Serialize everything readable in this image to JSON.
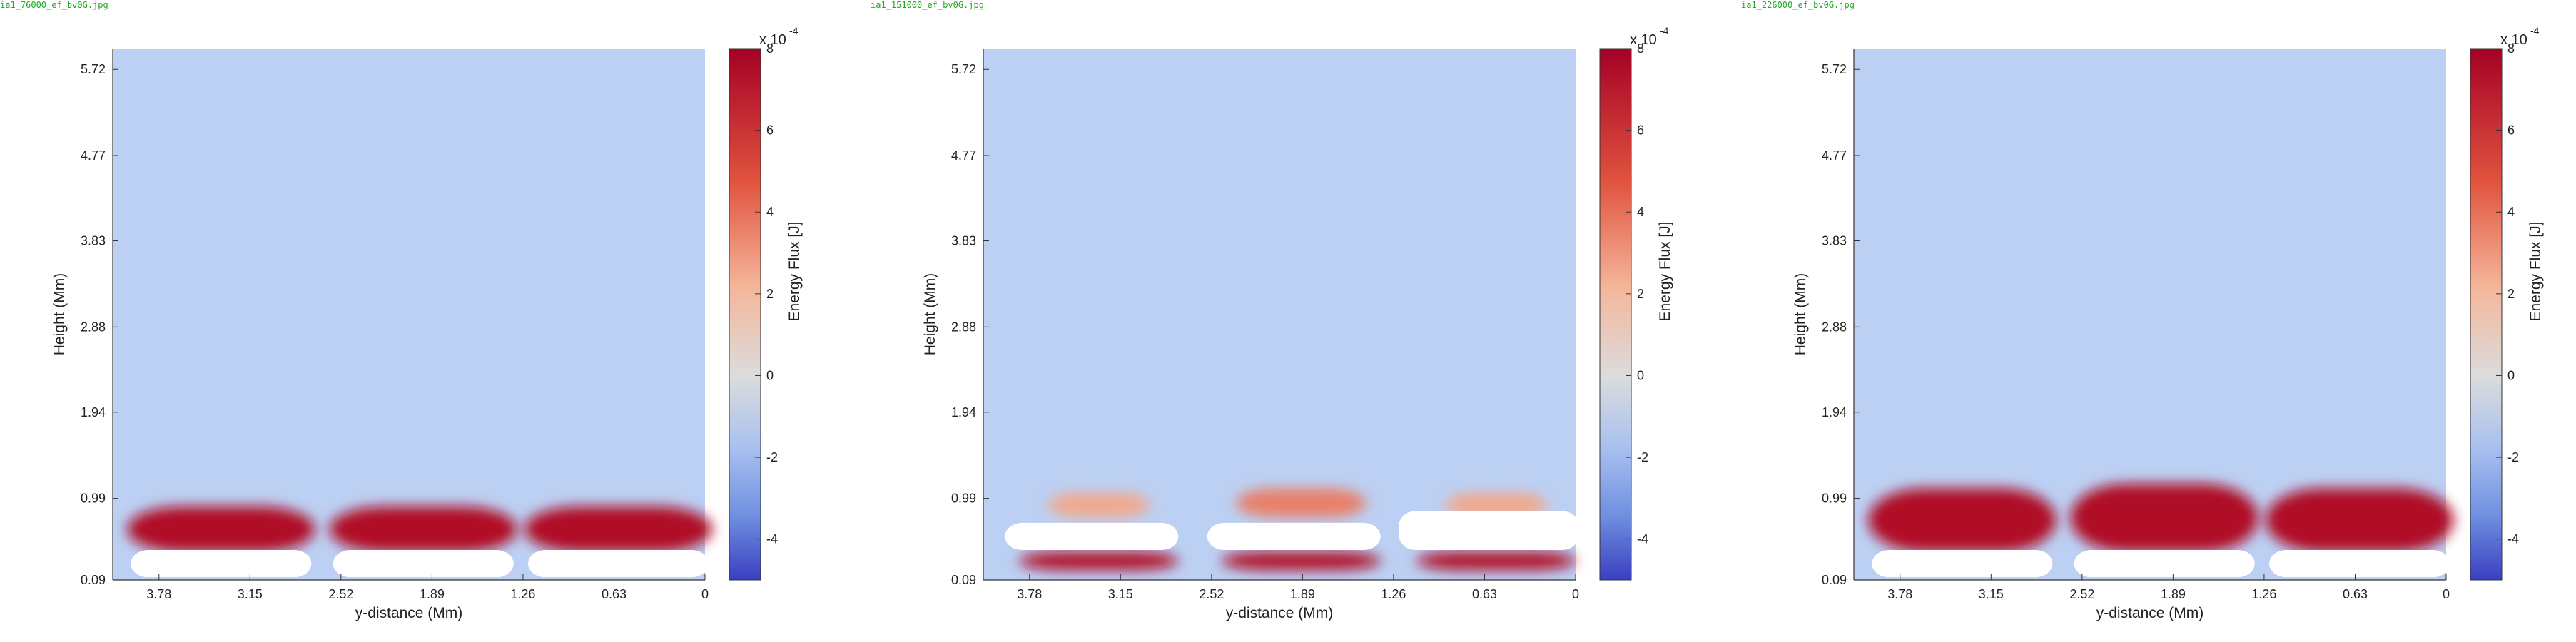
{
  "colors": {
    "background_field": "#bcd0f3",
    "hot": "#b00a28",
    "cold": "#3a4fc8",
    "label_green": "#22aa22"
  },
  "panels": [
    {
      "label": "ia1_76000_ef_bv0G.jpg",
      "chart_data": {
        "type": "heatmap",
        "xlabel": "y-distance (Mm)",
        "ylabel": "Height (Mm)",
        "x_ticks": [
          "3.78",
          "3.15",
          "2.52",
          "1.89",
          "1.26",
          "0.63",
          "0"
        ],
        "y_ticks": [
          "0.09",
          "0.99",
          "1.94",
          "2.88",
          "3.83",
          "4.77",
          "5.72"
        ],
        "x_range": [
          4.1,
          0
        ],
        "y_range": [
          0.09,
          5.95
        ],
        "colorbar": {
          "label": "Energy Flux [J]",
          "exponent_label": "x 10",
          "exponent": "-4",
          "ticks": [
            "8",
            "6",
            "4",
            "2",
            "0",
            "-2",
            "-4"
          ],
          "range": [
            -5,
            8
          ]
        },
        "features": [
          {
            "kind": "blob",
            "sign": "positive",
            "x_center": 3.35,
            "width": 1.3,
            "y_bottom": 0.4,
            "y_top": 0.9,
            "value": 8
          },
          {
            "kind": "blob",
            "sign": "positive",
            "x_center": 1.95,
            "width": 1.3,
            "y_bottom": 0.4,
            "y_top": 0.9,
            "value": 8
          },
          {
            "kind": "blob",
            "sign": "positive",
            "x_center": 0.6,
            "width": 1.3,
            "y_bottom": 0.4,
            "y_top": 0.9,
            "value": 8
          },
          {
            "kind": "mask",
            "x_center": 3.35,
            "width": 1.25,
            "y_bottom": 0.12,
            "y_top": 0.42
          },
          {
            "kind": "mask",
            "x_center": 1.95,
            "width": 1.25,
            "y_bottom": 0.12,
            "y_top": 0.42
          },
          {
            "kind": "mask",
            "x_center": 0.6,
            "width": 1.25,
            "y_bottom": 0.12,
            "y_top": 0.42
          }
        ]
      }
    },
    {
      "label": "ia1_151000_ef_bv0G.jpg",
      "chart_data": {
        "type": "heatmap",
        "xlabel": "y-distance (Mm)",
        "ylabel": "Height (Mm)",
        "x_ticks": [
          "3.78",
          "3.15",
          "2.52",
          "1.89",
          "1.26",
          "0.63",
          "0"
        ],
        "y_ticks": [
          "0.09",
          "0.99",
          "1.94",
          "2.88",
          "3.83",
          "4.77",
          "5.72"
        ],
        "x_range": [
          4.1,
          0
        ],
        "y_range": [
          0.09,
          5.95
        ],
        "colorbar": {
          "label": "Energy Flux [J]",
          "exponent_label": "x 10",
          "exponent": "-4",
          "ticks": [
            "8",
            "6",
            "4",
            "2",
            "0",
            "-2",
            "-4"
          ],
          "range": [
            -5,
            8
          ]
        },
        "features": [
          {
            "kind": "blob",
            "sign": "positive",
            "x_center": 3.3,
            "width": 0.7,
            "y_bottom": 0.78,
            "y_top": 1.05,
            "value": 4
          },
          {
            "kind": "blob",
            "sign": "positive",
            "x_center": 1.9,
            "width": 0.9,
            "y_bottom": 0.78,
            "y_top": 1.1,
            "value": 5
          },
          {
            "kind": "blob",
            "sign": "positive",
            "x_center": 0.55,
            "width": 0.7,
            "y_bottom": 0.78,
            "y_top": 1.05,
            "value": 4
          },
          {
            "kind": "blob",
            "sign": "positive",
            "x_center": 3.3,
            "width": 1.1,
            "y_bottom": 0.2,
            "y_top": 0.4,
            "value": 8
          },
          {
            "kind": "blob",
            "sign": "positive",
            "x_center": 1.9,
            "width": 1.1,
            "y_bottom": 0.2,
            "y_top": 0.4,
            "value": 8
          },
          {
            "kind": "blob",
            "sign": "positive",
            "x_center": 0.55,
            "width": 1.1,
            "y_bottom": 0.2,
            "y_top": 0.4,
            "value": 8
          },
          {
            "kind": "mask",
            "x_center": 3.35,
            "width": 1.2,
            "y_bottom": 0.42,
            "y_top": 0.72
          },
          {
            "kind": "mask",
            "x_center": 1.95,
            "width": 1.2,
            "y_bottom": 0.42,
            "y_top": 0.72
          },
          {
            "kind": "mask",
            "x_center": 0.6,
            "width": 1.25,
            "y_bottom": 0.42,
            "y_top": 0.85
          }
        ]
      }
    },
    {
      "label": "ia1_226000_ef_bv0G.jpg",
      "chart_data": {
        "type": "heatmap",
        "xlabel": "y-distance (Mm)",
        "ylabel": "Height (Mm)",
        "x_ticks": [
          "3.78",
          "3.15",
          "2.52",
          "1.89",
          "1.26",
          "0.63",
          "0"
        ],
        "y_ticks": [
          "0.09",
          "0.99",
          "1.94",
          "2.88",
          "3.83",
          "4.77",
          "5.72"
        ],
        "x_range": [
          4.1,
          0
        ],
        "y_range": [
          0.09,
          5.95
        ],
        "colorbar": {
          "label": "Energy Flux [J]",
          "exponent_label": "x 10",
          "exponent": "-4",
          "ticks": [
            "8",
            "6",
            "4",
            "2",
            "0",
            "-2",
            "-4"
          ],
          "range": [
            -5,
            8
          ]
        },
        "features": [
          {
            "kind": "blob",
            "sign": "positive",
            "x_center": 3.35,
            "width": 1.3,
            "y_bottom": 0.4,
            "y_top": 1.1,
            "value": 8
          },
          {
            "kind": "blob",
            "sign": "positive",
            "x_center": 1.95,
            "width": 1.3,
            "y_bottom": 0.4,
            "y_top": 1.15,
            "value": 8
          },
          {
            "kind": "blob",
            "sign": "positive",
            "x_center": 0.6,
            "width": 1.3,
            "y_bottom": 0.4,
            "y_top": 1.1,
            "value": 8
          },
          {
            "kind": "mask",
            "x_center": 3.35,
            "width": 1.25,
            "y_bottom": 0.12,
            "y_top": 0.42
          },
          {
            "kind": "mask",
            "x_center": 1.95,
            "width": 1.25,
            "y_bottom": 0.12,
            "y_top": 0.42
          },
          {
            "kind": "mask",
            "x_center": 0.6,
            "width": 1.25,
            "y_bottom": 0.12,
            "y_top": 0.42
          }
        ]
      }
    }
  ]
}
